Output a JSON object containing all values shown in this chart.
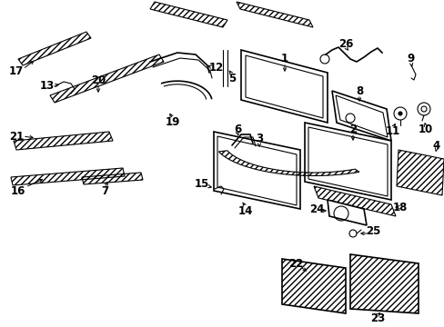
{
  "background_color": "#ffffff",
  "line_color": "#000000",
  "figsize": [
    4.89,
    3.6
  ],
  "dpi": 100,
  "label_fontsize": 8.5
}
